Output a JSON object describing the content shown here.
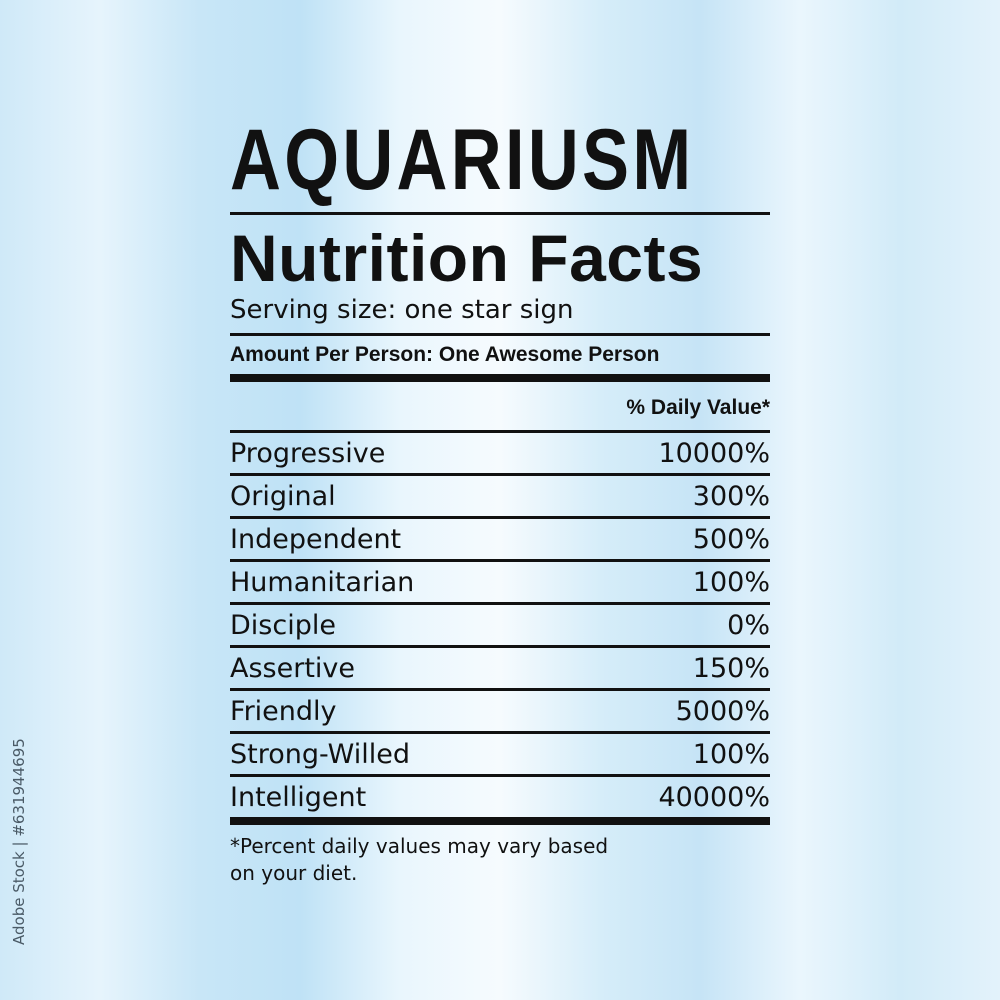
{
  "title": "AQUARIUSM",
  "zodiac_icon": "aquarius-symbol-icon",
  "heading": "Nutrition Facts",
  "serving_size": "Serving size: one star sign",
  "amount_per": "Amount Per Person: One Awesome Person",
  "daily_value_header": "% Daily Value*",
  "rows": [
    {
      "label": "Progressive",
      "value": "10000%"
    },
    {
      "label": "Original",
      "value": "300%"
    },
    {
      "label": "Independent",
      "value": "500%"
    },
    {
      "label": "Humanitarian",
      "value": "100%"
    },
    {
      "label": "Disciple",
      "value": "0%"
    },
    {
      "label": "Assertive",
      "value": "150%"
    },
    {
      "label": "Friendly",
      "value": "5000%"
    },
    {
      "label": "Strong-Willed",
      "value": "100%"
    },
    {
      "label": "Intelligent",
      "value": "40000%"
    }
  ],
  "footnote_line1": "*Percent daily values may vary based",
  "footnote_line2": "on your diet.",
  "watermark": "Adobe Stock | #631944695"
}
